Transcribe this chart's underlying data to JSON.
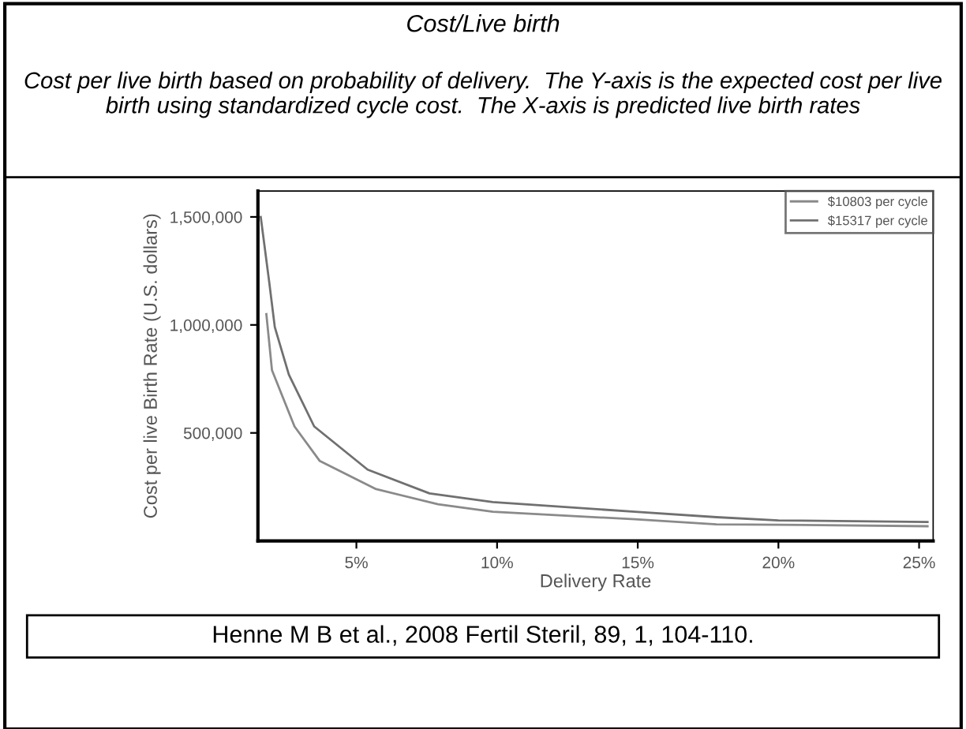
{
  "chart_data": {
    "type": "line",
    "title": "Cost/Live birth",
    "subtitle": "Cost per live birth based on probability of delivery.  The Y-axis is the expected cost per live birth using standardized cycle cost.  The X-axis is predicted live birth rates",
    "xlabel": "Delivery Rate",
    "ylabel": "Cost per live Birth Rate (U.S. dollars)",
    "annotations": [
      "Henne M B et al., 2008 Fertil Steril, 89, 1, 104-110."
    ],
    "series": [
      {
        "name": "$10803 per cycle",
        "color": "#8a8a8a",
        "x": [
          1.8,
          2.0,
          2.8,
          3.7,
          5.7,
          7.9,
          9.85,
          14.9,
          17.8,
          20,
          25.3
        ],
        "values": [
          1050000,
          790000,
          530000,
          370000,
          240000,
          170000,
          135000,
          100000,
          77000,
          75000,
          68000
        ]
      },
      {
        "name": "$15317 per cycle",
        "color": "#707070",
        "x": [
          1.6,
          1.9,
          2.1,
          2.6,
          3.5,
          5.4,
          7.6,
          9.85,
          14.9,
          17.8,
          20,
          25.3
        ],
        "values": [
          1500000,
          1200000,
          990000,
          770000,
          530000,
          330000,
          220000,
          180000,
          135000,
          110000,
          95000,
          88000
        ]
      }
    ],
    "xlim": [
      1.5,
      25.5
    ],
    "ylim": [
      0,
      1620000
    ],
    "xticks": [
      {
        "value": 5,
        "label": "5%"
      },
      {
        "value": 10,
        "label": "10%"
      },
      {
        "value": 15,
        "label": "15%"
      },
      {
        "value": 20,
        "label": "20%"
      },
      {
        "value": 25,
        "label": "25%"
      }
    ],
    "yticks": [
      {
        "value": 500000,
        "label": "500,000"
      },
      {
        "value": 1000000,
        "label": "1,000,000"
      },
      {
        "value": 1500000,
        "label": "1,500,000"
      }
    ],
    "legend": "top right",
    "grid": false,
    "line_style": "solid",
    "marker": "none"
  }
}
